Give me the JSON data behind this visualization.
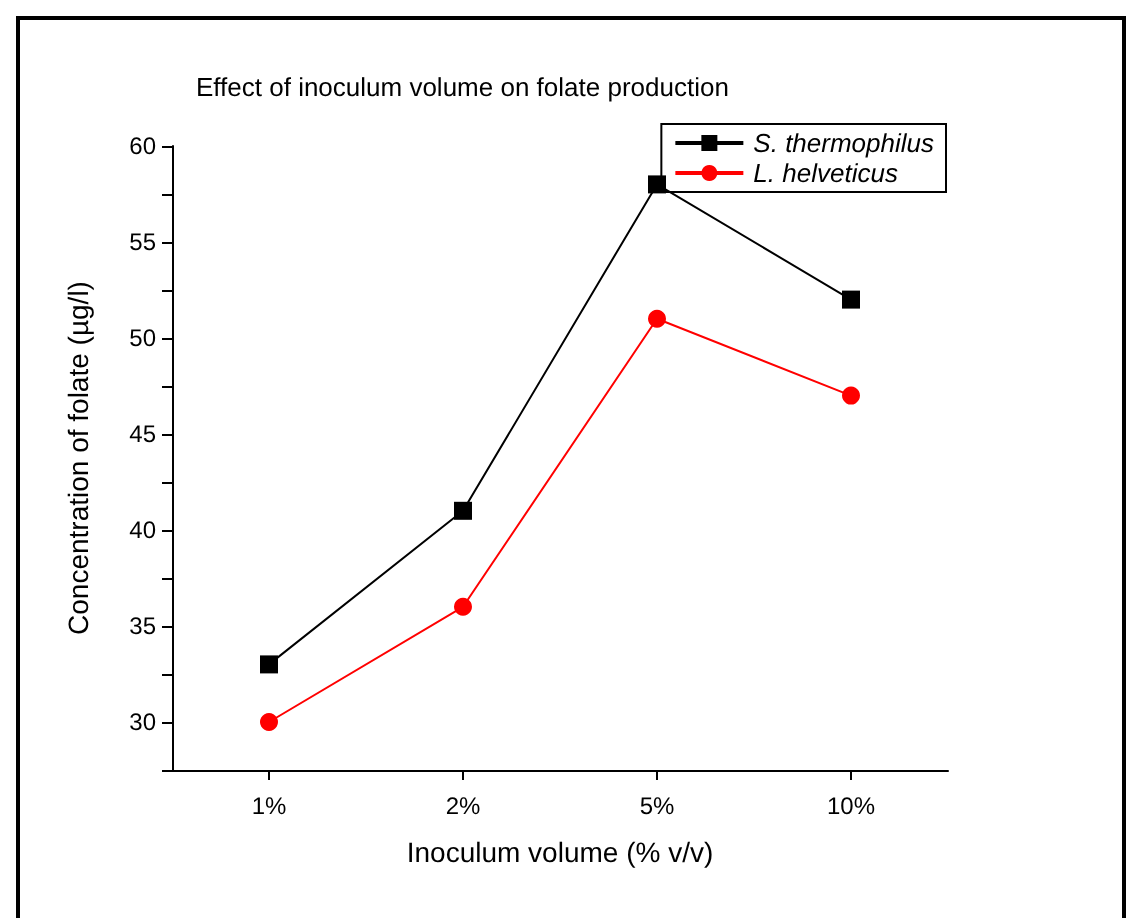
{
  "chart_data": {
    "type": "line",
    "title": "Effect of inoculum volume on folate production",
    "xlabel": "Inoculum volume (% v/v)",
    "ylabel": "Concentration of folate (µg/l)",
    "categories": [
      "1%",
      "2%",
      "5%",
      "10%"
    ],
    "series": [
      {
        "name": "S. thermophilus",
        "color": "#000000",
        "marker": "square",
        "values": [
          33,
          41,
          58,
          52
        ]
      },
      {
        "name": "L. helveticus",
        "color": "#ff0000",
        "marker": "circle",
        "values": [
          30,
          36,
          51,
          47
        ]
      }
    ],
    "ylim": [
      27.5,
      60
    ],
    "yticks": [
      {
        "value": 27.5,
        "label": null
      },
      30,
      {
        "value": 32.5,
        "label": null
      },
      35,
      {
        "value": 37.5,
        "label": null
      },
      40,
      {
        "value": 42.5,
        "label": null
      },
      45,
      {
        "value": 47.5,
        "label": null
      },
      50,
      {
        "value": 52.5,
        "label": null
      },
      55,
      {
        "value": 57.5,
        "label": null
      },
      60
    ],
    "grid": false,
    "legend": "top right",
    "line_style": "solid"
  }
}
